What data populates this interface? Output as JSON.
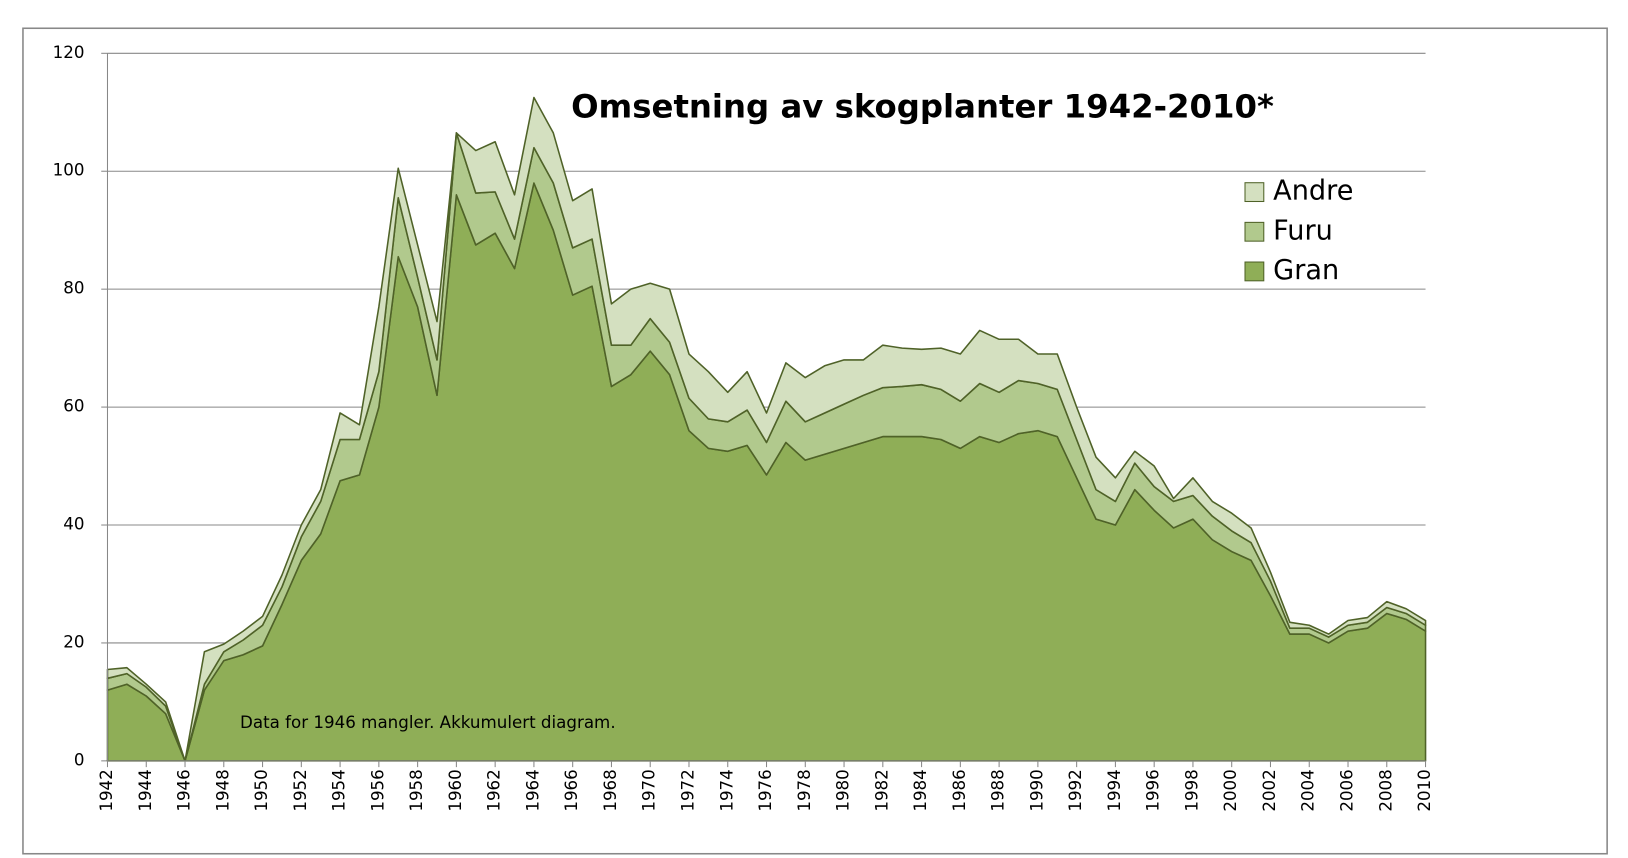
{
  "chart_data": {
    "type": "stacked-area",
    "title": "Omsetning av skogplanter 1942-2010*",
    "annotation": "Data for 1946 mangler.  Akkumulert diagram.",
    "x": [
      1942,
      1943,
      1944,
      1945,
      1946,
      1947,
      1948,
      1949,
      1950,
      1951,
      1952,
      1953,
      1954,
      1955,
      1956,
      1957,
      1958,
      1959,
      1960,
      1961,
      1962,
      1963,
      1964,
      1965,
      1966,
      1967,
      1968,
      1969,
      1970,
      1971,
      1972,
      1973,
      1974,
      1975,
      1976,
      1977,
      1978,
      1979,
      1980,
      1981,
      1982,
      1983,
      1984,
      1985,
      1986,
      1987,
      1988,
      1989,
      1990,
      1991,
      1992,
      1993,
      1994,
      1995,
      1996,
      1997,
      1998,
      1999,
      2000,
      2001,
      2002,
      2003,
      2004,
      2005,
      2006,
      2007,
      2008,
      2009,
      2010
    ],
    "xlim": [
      1942,
      2010
    ],
    "xticks": [
      1942,
      1944,
      1946,
      1948,
      1950,
      1952,
      1954,
      1956,
      1958,
      1960,
      1962,
      1964,
      1966,
      1968,
      1970,
      1972,
      1974,
      1976,
      1978,
      1980,
      1982,
      1984,
      1986,
      1988,
      1990,
      1992,
      1994,
      1996,
      1998,
      2000,
      2002,
      2004,
      2006,
      2008,
      2010
    ],
    "ylim": [
      0,
      120
    ],
    "yticks": [
      0,
      20,
      40,
      60,
      80,
      100,
      120
    ],
    "grid": true,
    "legend": "upper right",
    "series": [
      {
        "name": "Gran",
        "color": "#8fae57",
        "values": [
          12,
          13,
          11,
          8,
          0,
          12,
          17,
          18,
          19.5,
          26.5,
          34,
          38.5,
          47.5,
          48.5,
          60,
          85.5,
          77,
          62,
          96,
          87.5,
          89.5,
          83.5,
          98,
          90,
          79,
          80.5,
          63.5,
          65.5,
          69.5,
          65.5,
          56,
          53,
          52.5,
          53.5,
          48.5,
          54,
          51,
          52,
          53,
          54,
          55,
          55,
          55,
          54.5,
          53,
          55,
          54,
          55.5,
          56,
          55,
          48,
          41,
          40,
          46,
          42.5,
          39.5,
          41,
          37.5,
          35.5,
          34,
          28,
          21.5,
          21.5,
          20,
          22,
          22.5,
          25,
          24,
          22
        ]
      },
      {
        "name": "Furu",
        "color": "#b1c98d",
        "values": [
          2,
          1.8,
          1.5,
          1.3,
          0,
          1,
          1.5,
          2.5,
          3.5,
          3,
          4,
          5.5,
          7,
          6,
          6,
          10,
          5,
          6,
          10.5,
          8.8,
          7,
          5,
          6,
          8,
          8,
          8,
          7,
          5,
          5.5,
          5.5,
          5.5,
          5,
          5,
          6,
          5.5,
          7,
          6.5,
          7,
          7.5,
          8,
          8.3,
          8.5,
          8.8,
          8.5,
          8,
          9,
          8.5,
          9,
          8,
          8,
          6.5,
          5,
          4,
          4.5,
          4,
          4.5,
          4,
          4,
          3.5,
          3,
          2.5,
          1,
          1,
          1,
          1,
          1,
          1,
          1,
          1
        ]
      },
      {
        "name": "Andre",
        "color": "#d4e0c0",
        "values": [
          1.5,
          1,
          0.5,
          0.7,
          0,
          5.5,
          1.3,
          1.5,
          1.5,
          2,
          2,
          2,
          4.5,
          2.5,
          11,
          5,
          5.5,
          6.5,
          0,
          7.2,
          8.5,
          7.5,
          8.5,
          8.5,
          8,
          8.5,
          7,
          9.5,
          6,
          9,
          7.5,
          8,
          5,
          6.5,
          5,
          6.5,
          7.5,
          8,
          7.5,
          6,
          7.2,
          6.5,
          6,
          7,
          8,
          9,
          9,
          7,
          5,
          6,
          5.5,
          5.5,
          4,
          2,
          3.5,
          0.5,
          3,
          2.5,
          3,
          2.5,
          1.5,
          1,
          0.5,
          0.5,
          0.8,
          0.8,
          1,
          0.8,
          0.8
        ]
      }
    ]
  }
}
